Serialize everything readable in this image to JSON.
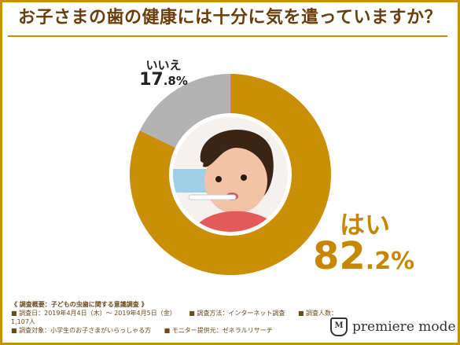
{
  "title": "お子さまの歯の健康には十分に気を遣っていますか？",
  "chart_data": {
    "type": "pie",
    "title": "お子さまの歯の健康には十分に気を遣っていますか？",
    "unit": "%",
    "slices": [
      {
        "label": "はい",
        "value": 82.2,
        "value_int": "82",
        "value_dec": ".2%",
        "color": "#c98f06"
      },
      {
        "label": "いいえ",
        "value": 17.8,
        "value_int": "17",
        "value_dec": ".8%",
        "color": "#b3b3b3"
      }
    ]
  },
  "survey": {
    "heading": "《 調査概要：子どもの虫歯に関する意識調査 》",
    "date": "■ 調査日：2019年4月4日（木）～ 2019年4月5日（金）",
    "method": "■ 調査方法：インターネット調査",
    "count": "■ 調査人数：1,107人",
    "target": "■ 調査対象：小学生のお子さまがいらっしゃる方",
    "provider": "■ モニター提供元：ゼネラルリサーチ"
  },
  "brand": {
    "name": "premiere mode",
    "logo_letter": "M"
  }
}
